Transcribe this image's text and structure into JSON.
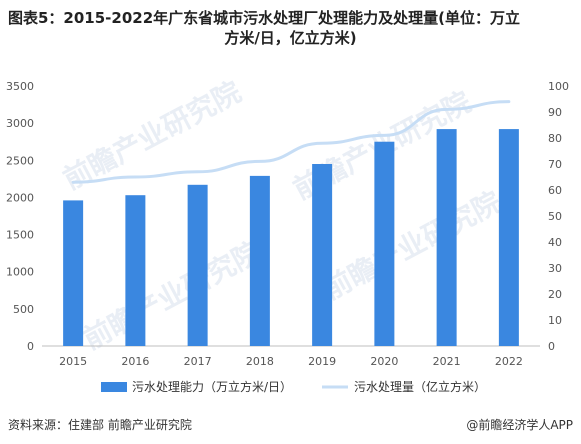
{
  "title_line1": "图表5：2015-2022年广东省城市污水处理厂处理能力及处理量(单位：万立",
  "title_line2": "方米/日，亿立方米)",
  "source": "资料来源：住建部 前瞻产业研究院",
  "brand": "@前瞻经济学人APP",
  "watermark": "前瞻产业研究院",
  "colors": {
    "bar": "#3a87e0",
    "line": "#c6ddf5",
    "axis": "#bfbfbf"
  },
  "chart_data": {
    "type": "bar",
    "categories": [
      "2015",
      "2016",
      "2017",
      "2018",
      "2019",
      "2020",
      "2021",
      "2022"
    ],
    "series": [
      {
        "name": "污水处理能力（万立方米/日）",
        "type": "bar",
        "axis": "left",
        "values": [
          1960,
          2030,
          2170,
          2290,
          2450,
          2750,
          2920,
          2920
        ]
      },
      {
        "name": "污水处理量（亿立方米）",
        "type": "line",
        "axis": "right",
        "values": [
          63,
          65,
          67,
          71,
          78,
          81,
          91,
          94
        ]
      }
    ],
    "ylim_left": [
      0,
      3500
    ],
    "yticks_left": [
      "0",
      "500",
      "1000",
      "1500",
      "2000",
      "2500",
      "3000",
      "3500"
    ],
    "ylim_right": [
      0,
      100
    ],
    "yticks_right": [
      "0",
      "10",
      "20",
      "30",
      "40",
      "50",
      "60",
      "70",
      "80",
      "90",
      "100"
    ],
    "legend_position": "bottom"
  }
}
